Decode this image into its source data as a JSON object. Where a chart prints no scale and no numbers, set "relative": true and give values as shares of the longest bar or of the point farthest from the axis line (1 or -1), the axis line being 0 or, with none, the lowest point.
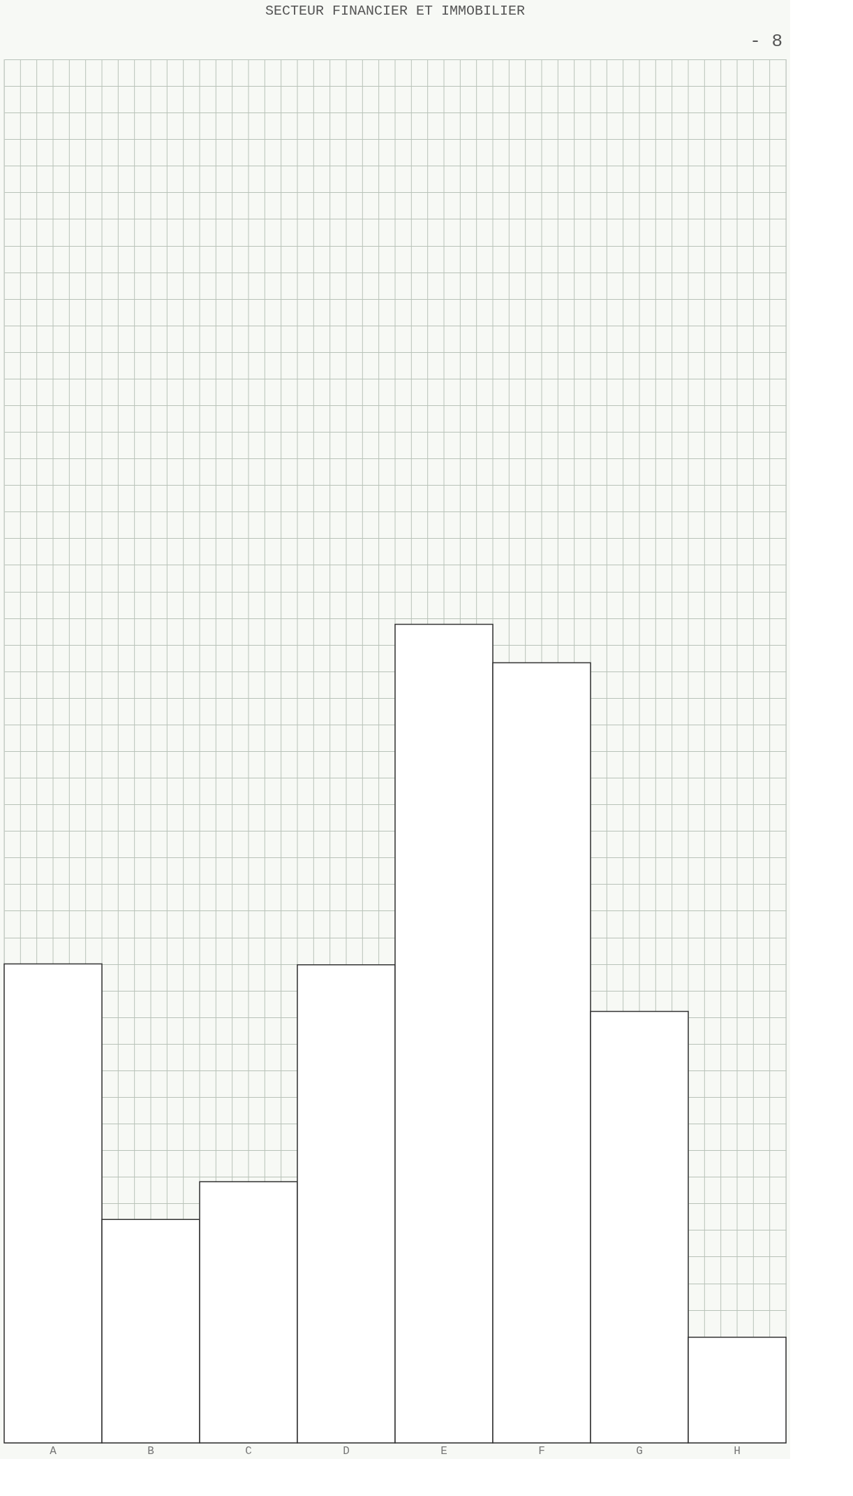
{
  "chart_data": {
    "type": "bar",
    "title": "SECTEUR FINANCIER ET IMMOBILIER",
    "annotations": [
      "- 8"
    ],
    "categories": [
      "A",
      "B",
      "C",
      "D",
      "E",
      "F",
      "G",
      "H"
    ],
    "values": [
      0.585,
      0.273,
      0.319,
      0.584,
      1,
      0.953,
      0.527,
      0.129
    ],
    "color": "#ffffff",
    "relative": true,
    "grid": true
  }
}
